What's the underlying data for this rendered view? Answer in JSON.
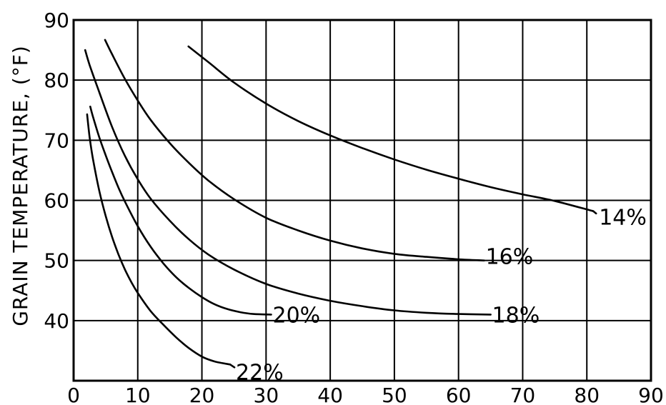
{
  "chart_data": {
    "type": "line",
    "title": "",
    "xlabel": "",
    "ylabel": "GRAIN  TEMPERATURE, (°F)",
    "xlim": [
      0,
      90
    ],
    "ylim": [
      30,
      90
    ],
    "x_ticks": [
      0,
      10,
      20,
      30,
      40,
      50,
      60,
      70,
      80,
      90
    ],
    "x_tick_labels": [
      "0",
      "10",
      "20",
      "30",
      "40",
      "50",
      "60",
      "70",
      "80",
      "90"
    ],
    "y_ticks": [
      40,
      50,
      60,
      70,
      80,
      90
    ],
    "y_tick_labels": [
      "40",
      "50",
      "60",
      "70",
      "80",
      "90"
    ],
    "grid": true,
    "legend": "none",
    "series": [
      {
        "name": "14%",
        "points": [
          [
            17.9,
            85.6
          ],
          [
            21,
            83
          ],
          [
            25,
            79.6
          ],
          [
            30,
            76.1
          ],
          [
            35,
            73.2
          ],
          [
            40,
            70.8
          ],
          [
            45,
            68.7
          ],
          [
            50,
            66.8
          ],
          [
            55,
            65.1
          ],
          [
            60,
            63.6
          ],
          [
            65,
            62.2
          ],
          [
            70,
            61
          ],
          [
            75,
            59.9
          ],
          [
            81,
            58.2
          ]
        ]
      },
      {
        "name": "16%",
        "points": [
          [
            4.9,
            86.7
          ],
          [
            6,
            84.3
          ],
          [
            8,
            80.2
          ],
          [
            10,
            76.6
          ],
          [
            12,
            73.4
          ],
          [
            15,
            69.5
          ],
          [
            18,
            66.2
          ],
          [
            21,
            63.3
          ],
          [
            25,
            60.2
          ],
          [
            30,
            57.1
          ],
          [
            35,
            55
          ],
          [
            40,
            53.3
          ],
          [
            45,
            52
          ],
          [
            50,
            51.1
          ],
          [
            55,
            50.6
          ],
          [
            60,
            50.2
          ],
          [
            64,
            50
          ]
        ]
      },
      {
        "name": "18%",
        "points": [
          [
            1.8,
            85
          ],
          [
            2.5,
            82.5
          ],
          [
            4,
            78
          ],
          [
            6,
            72.2
          ],
          [
            8,
            67.4
          ],
          [
            10,
            63.5
          ],
          [
            12,
            60.3
          ],
          [
            15,
            56.6
          ],
          [
            18,
            53.5
          ],
          [
            21,
            51
          ],
          [
            25,
            48.5
          ],
          [
            30,
            46.1
          ],
          [
            35,
            44.5
          ],
          [
            40,
            43.3
          ],
          [
            45,
            42.4
          ],
          [
            50,
            41.7
          ],
          [
            55,
            41.3
          ],
          [
            60,
            41.1
          ],
          [
            65,
            41
          ]
        ]
      },
      {
        "name": "20%",
        "points": [
          [
            2.6,
            75.6
          ],
          [
            3,
            74
          ],
          [
            4,
            70.5
          ],
          [
            5,
            67.5
          ],
          [
            6,
            64.7
          ],
          [
            7,
            62.1
          ],
          [
            8,
            59.8
          ],
          [
            10,
            55.7
          ],
          [
            12,
            52.3
          ],
          [
            14,
            49.5
          ],
          [
            16,
            47.2
          ],
          [
            18,
            45.4
          ],
          [
            20,
            43.9
          ],
          [
            22,
            42.7
          ],
          [
            24,
            41.9
          ],
          [
            26,
            41.4
          ],
          [
            28,
            41.1
          ],
          [
            30.8,
            41
          ]
        ]
      },
      {
        "name": "22%",
        "points": [
          [
            2.1,
            74.3
          ],
          [
            2.5,
            70.5
          ],
          [
            3,
            67
          ],
          [
            4,
            61.6
          ],
          [
            5,
            57.4
          ],
          [
            6,
            53.9
          ],
          [
            7,
            51
          ],
          [
            8,
            48.5
          ],
          [
            9,
            46.4
          ],
          [
            10,
            44.6
          ],
          [
            12,
            41.6
          ],
          [
            14,
            39.3
          ],
          [
            16,
            37.2
          ],
          [
            18,
            35.4
          ],
          [
            20,
            34
          ],
          [
            22,
            33.2
          ],
          [
            24.4,
            32.7
          ]
        ]
      }
    ]
  }
}
